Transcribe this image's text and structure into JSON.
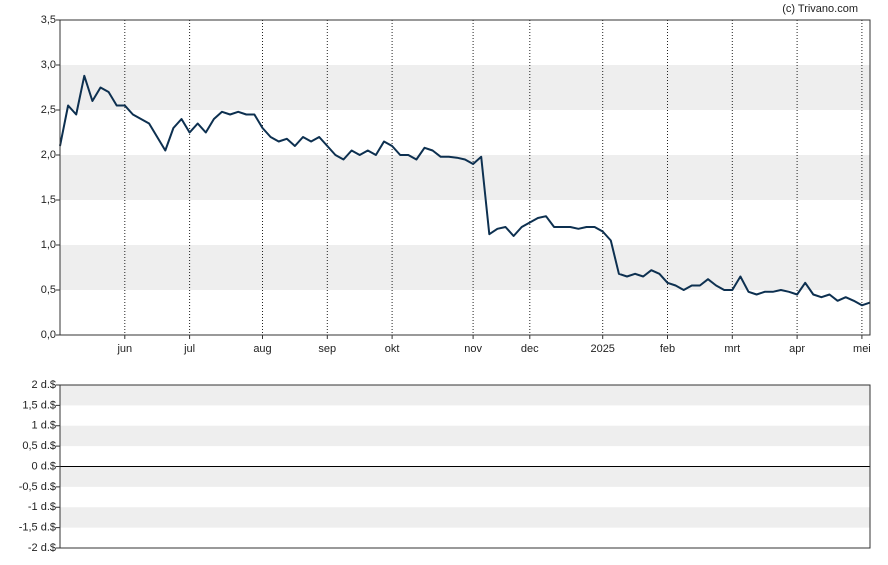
{
  "watermark": "(c) Trivano.com",
  "chart_data": [
    {
      "type": "line",
      "categories": [
        null,
        null,
        null,
        null,
        null,
        null,
        null,
        null,
        "jun",
        null,
        null,
        null,
        null,
        null,
        null,
        null,
        "jul",
        null,
        null,
        null,
        null,
        null,
        null,
        null,
        null,
        "aug",
        null,
        null,
        null,
        null,
        null,
        null,
        null,
        "sep",
        null,
        null,
        null,
        null,
        null,
        null,
        null,
        "okt",
        null,
        null,
        null,
        null,
        null,
        null,
        null,
        null,
        null,
        "nov",
        null,
        null,
        null,
        null,
        null,
        null,
        "dec",
        null,
        null,
        null,
        null,
        null,
        null,
        null,
        null,
        "2025",
        null,
        null,
        null,
        null,
        null,
        null,
        null,
        "feb",
        null,
        null,
        null,
        null,
        null,
        null,
        null,
        "mrt",
        null,
        null,
        null,
        null,
        null,
        null,
        null,
        "apr",
        null,
        null,
        null,
        null,
        null,
        null,
        null,
        "mei",
        null
      ],
      "series": [
        {
          "color": "#0d3050",
          "values": [
            2.1,
            2.55,
            2.45,
            2.88,
            2.6,
            2.75,
            2.7,
            2.55,
            2.55,
            2.45,
            2.4,
            2.35,
            2.2,
            2.05,
            2.3,
            2.4,
            2.25,
            2.35,
            2.25,
            2.4,
            2.48,
            2.45,
            2.48,
            2.45,
            2.45,
            2.3,
            2.2,
            2.15,
            2.18,
            2.1,
            2.2,
            2.15,
            2.2,
            2.1,
            2.0,
            1.95,
            2.05,
            2.0,
            2.05,
            2.0,
            2.15,
            2.1,
            2.0,
            2.0,
            1.95,
            2.08,
            2.05,
            1.98,
            1.98,
            1.97,
            1.95,
            1.9,
            1.98,
            1.12,
            1.18,
            1.2,
            1.1,
            1.2,
            1.25,
            1.3,
            1.32,
            1.2,
            1.2,
            1.2,
            1.18,
            1.2,
            1.2,
            1.15,
            1.05,
            0.68,
            0.65,
            0.68,
            0.65,
            0.72,
            0.68,
            0.58,
            0.55,
            0.5,
            0.55,
            0.55,
            0.62,
            0.55,
            0.5,
            0.5,
            0.65,
            0.48,
            0.45,
            0.48,
            0.48,
            0.5,
            0.48,
            0.45,
            0.58,
            0.45,
            0.42,
            0.45,
            0.38,
            0.42,
            0.38,
            0.33,
            0.36
          ]
        }
      ],
      "ylim": [
        0,
        3.5
      ],
      "yticks": [
        {
          "value": 0,
          "label": "0,0"
        },
        {
          "value": 0.5,
          "label": "0,5"
        },
        {
          "value": 1,
          "label": "1,0"
        },
        {
          "value": 1.5,
          "label": "1,5"
        },
        {
          "value": 2,
          "label": "2,0"
        },
        {
          "value": 2.5,
          "label": "2,5"
        },
        {
          "value": 3,
          "label": "3,0"
        },
        {
          "value": 3.5,
          "label": "3,5"
        }
      ],
      "band_color": "#eeeeee",
      "xgrid": true
    },
    {
      "type": "line",
      "series": [],
      "ylim": [
        -2,
        2
      ],
      "yticks": [
        {
          "value": -2,
          "label": "-2 d.$"
        },
        {
          "value": -1.5,
          "label": "-1,5 d.$"
        },
        {
          "value": -1,
          "label": "-1 d.$"
        },
        {
          "value": -0.5,
          "label": "-0,5 d.$"
        },
        {
          "value": 0,
          "label": "0 d.$"
        },
        {
          "value": 0.5,
          "label": "0,5 d.$"
        },
        {
          "value": 1,
          "label": "1 d.$"
        },
        {
          "value": 1.5,
          "label": "1,5 d.$"
        },
        {
          "value": 2,
          "label": "2 d.$"
        }
      ],
      "band_color": "#eeeeee",
      "xgrid": false
    }
  ]
}
